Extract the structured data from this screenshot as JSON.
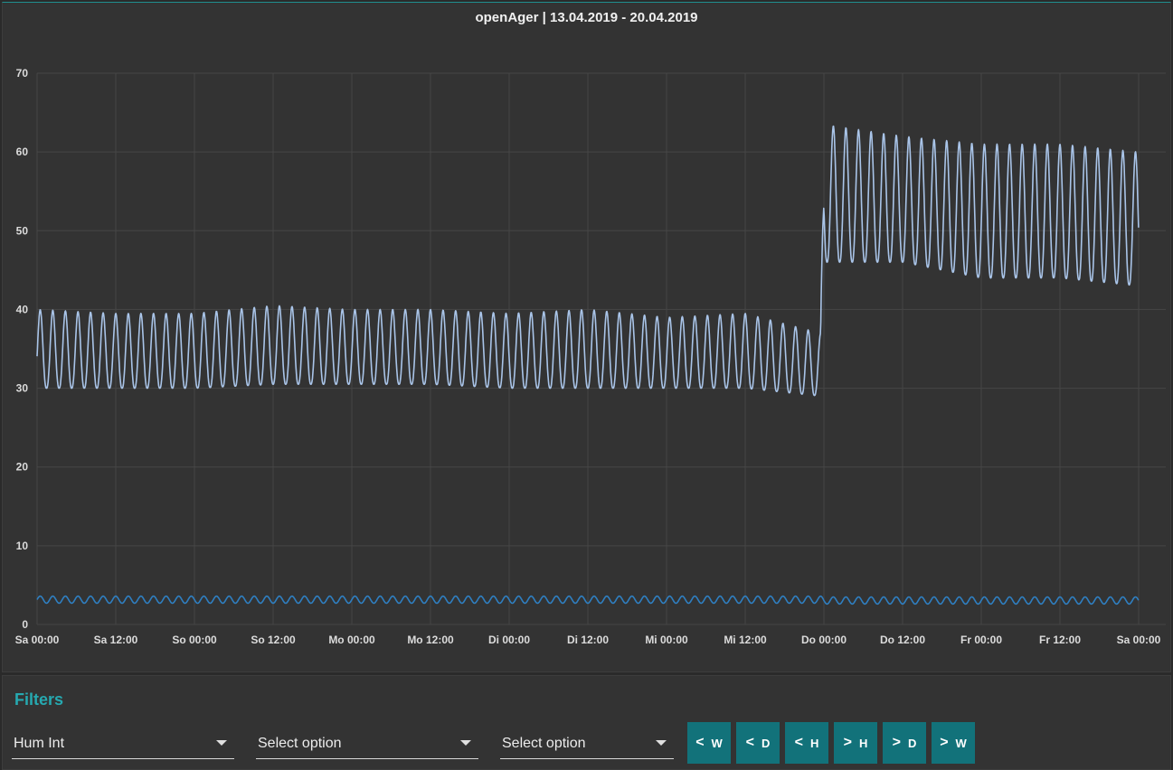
{
  "chart_title": "openAger | 13.04.2019 - 20.04.2019",
  "chart_data": {
    "type": "line",
    "title": "openAger | 13.04.2019 - 20.04.2019",
    "xlabel": "",
    "ylabel": "",
    "x_ticks": [
      "Sa 00:00",
      "Sa 12:00",
      "So 00:00",
      "So 12:00",
      "Mo 00:00",
      "Mo 12:00",
      "Di 00:00",
      "Di 12:00",
      "Mi 00:00",
      "Mi 12:00",
      "Do 00:00",
      "Do 12:00",
      "Fr 00:00",
      "Fr 12:00",
      "Sa 00:00"
    ],
    "y_ticks": [
      0,
      10,
      20,
      30,
      40,
      50,
      60,
      70
    ],
    "xlim": [
      "2019-04-13 00:00",
      "2019-04-20 00:00"
    ],
    "ylim": [
      0,
      70
    ],
    "grid": true,
    "legend": "none",
    "series": [
      {
        "color": "#a9c4e8",
        "x": [
          "2019-04-13 00:00",
          "2019-04-13 12:00",
          "2019-04-14 00:00",
          "2019-04-14 12:00",
          "2019-04-15 00:00",
          "2019-04-15 12:00",
          "2019-04-16 00:00",
          "2019-04-16 12:00",
          "2019-04-17 00:00",
          "2019-04-17 12:00",
          "2019-04-17 23:30",
          "2019-04-18 00:00",
          "2019-04-18 12:00",
          "2019-04-19 00:00",
          "2019-04-19 12:00",
          "2019-04-19 23:59"
        ],
        "min": [
          30,
          30,
          30,
          30.5,
          30.5,
          30.5,
          30,
          30,
          30,
          30,
          29,
          46,
          46,
          44,
          44,
          43
        ],
        "max": [
          40,
          39.5,
          39.5,
          40.5,
          40,
          40,
          39.5,
          40,
          39,
          39.5,
          37,
          63.5,
          62,
          61,
          61,
          60
        ],
        "cycles_per_day": 12.5
      },
      {
        "color": "#2f7fc1",
        "x": [
          "2019-04-13 00:00",
          "2019-04-17 23:30",
          "2019-04-18 00:00",
          "2019-04-19 23:59"
        ],
        "min": [
          2.7,
          2.7,
          2.6,
          2.6
        ],
        "max": [
          3.6,
          3.6,
          3.5,
          3.5
        ],
        "cycles_per_day": 12.5
      }
    ]
  },
  "filters": {
    "title": "Filters",
    "select1": "Hum Int",
    "select2": "Select option",
    "select3": "Select option"
  },
  "nav": [
    {
      "chev": "<",
      "label": "W"
    },
    {
      "chev": "<",
      "label": "D"
    },
    {
      "chev": "<",
      "label": "H"
    },
    {
      "chev": ">",
      "label": "H"
    },
    {
      "chev": ">",
      "label": "D"
    },
    {
      "chev": ">",
      "label": "W"
    }
  ]
}
